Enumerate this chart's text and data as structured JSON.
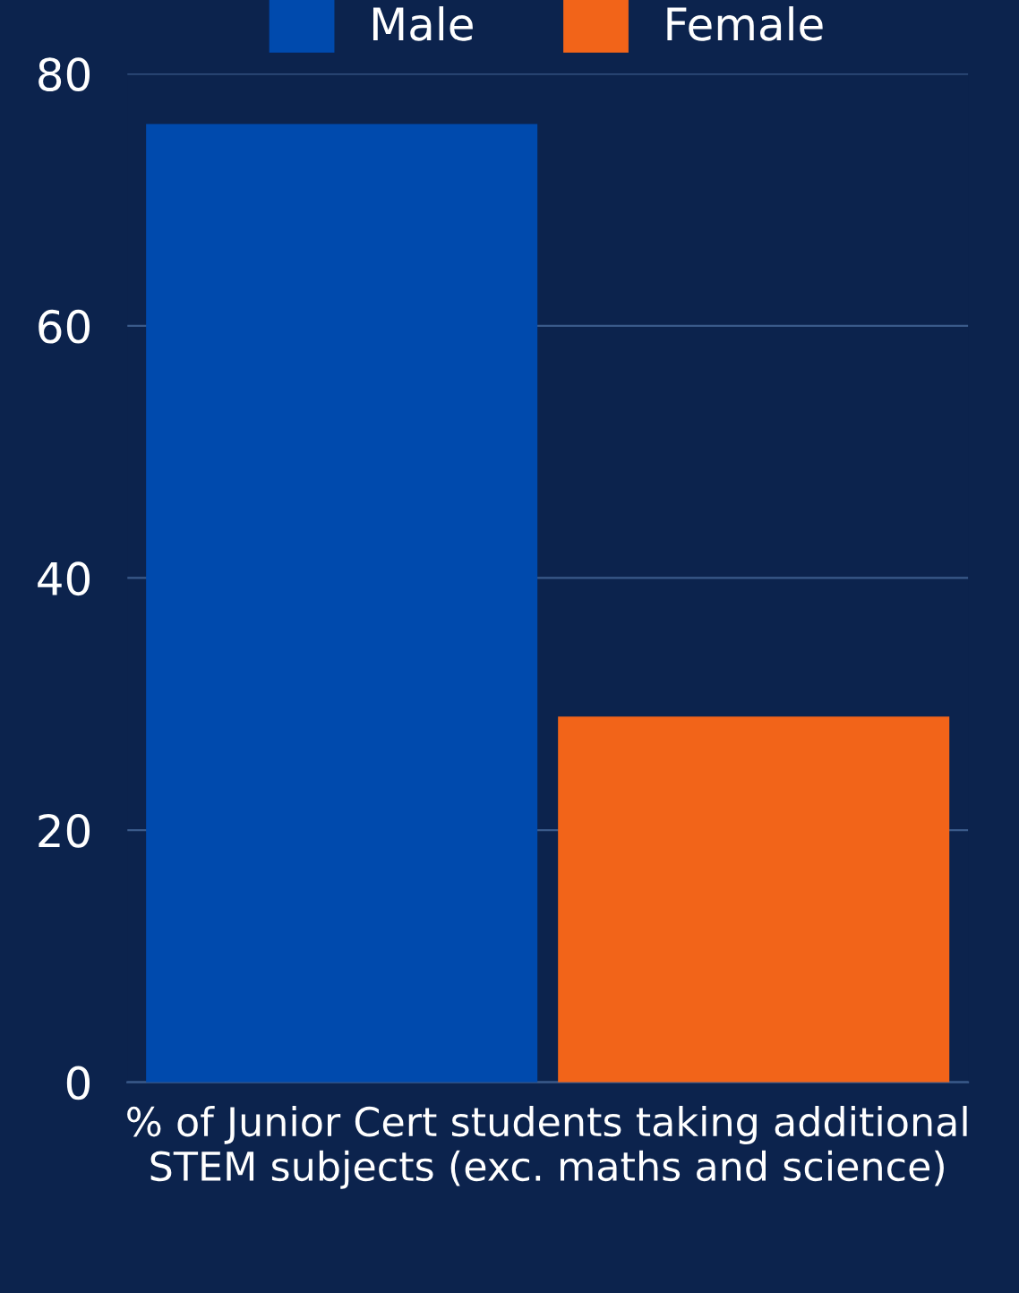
{
  "chart_data": {
    "type": "bar",
    "xlabel": "% of Junior Cert students taking additional STEM subjects (exc. maths and science)",
    "categories": [
      null
    ],
    "series": [
      {
        "name": "Male",
        "color": "#004aad",
        "values": [
          76
        ]
      },
      {
        "name": "Female",
        "color": "#f26419",
        "values": [
          29
        ]
      }
    ],
    "ylim": [
      0,
      80
    ],
    "yticks": [
      0,
      20,
      40,
      60,
      80
    ],
    "grid": "y",
    "legend": "top"
  }
}
